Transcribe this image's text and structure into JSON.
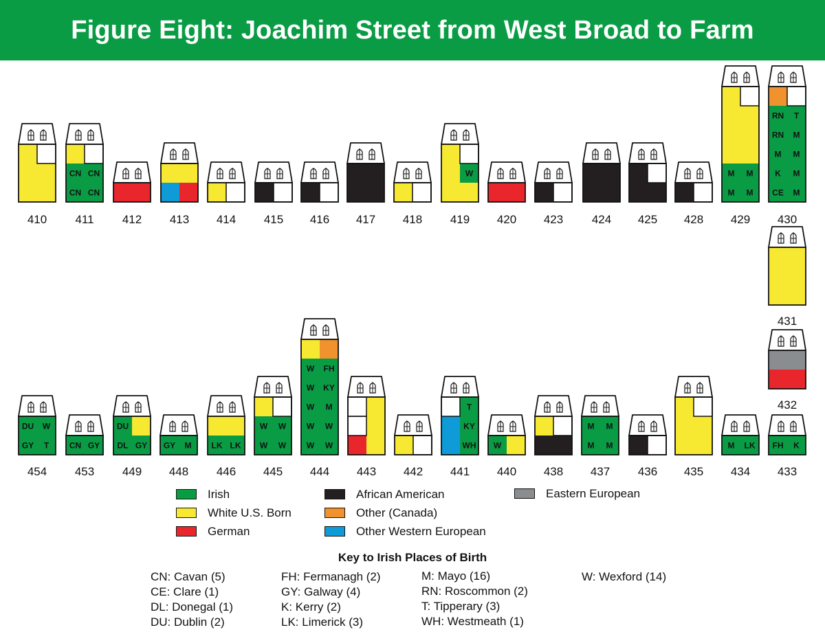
{
  "title": "Figure Eight: Joachim Street from West Broad to Farm",
  "colors": {
    "I": "#0a9c45",
    "W": "#f7e832",
    "G": "#e8262b",
    "A": "#231f20",
    "C": "#f0922e",
    "O": "#0f9bd7",
    "E": "#8a8d90",
    "X": "#ffffff"
  },
  "legend": [
    {
      "code": "I",
      "label": "Irish"
    },
    {
      "code": "W",
      "label": "White U.S. Born"
    },
    {
      "code": "G",
      "label": "German"
    },
    {
      "code": "A",
      "label": "African American"
    },
    {
      "code": "C",
      "label": "Other (Canada)"
    },
    {
      "code": "O",
      "label": "Other Western European"
    },
    {
      "code": "E",
      "label": "Eastern European"
    }
  ],
  "houses": [
    {
      "number": "410",
      "grid": [
        [
          "W",
          "X"
        ],
        [
          "W",
          "W"
        ],
        [
          "W",
          "W"
        ]
      ]
    },
    {
      "number": "411",
      "grid": [
        [
          "W",
          "X"
        ],
        [
          "I:CN",
          "I:CN"
        ],
        [
          "I:CN",
          "I:CN"
        ]
      ]
    },
    {
      "number": "412",
      "grid": [
        [
          "G",
          "G"
        ]
      ]
    },
    {
      "number": "413",
      "grid": [
        [
          "W",
          "W"
        ],
        [
          "O",
          "G"
        ]
      ]
    },
    {
      "number": "414",
      "grid": [
        [
          "W",
          "X"
        ]
      ]
    },
    {
      "number": "415",
      "grid": [
        [
          "A",
          "X"
        ]
      ]
    },
    {
      "number": "416",
      "grid": [
        [
          "A",
          "X"
        ]
      ]
    },
    {
      "number": "417",
      "grid": [
        [
          "A",
          "A"
        ],
        [
          "A",
          "A"
        ]
      ]
    },
    {
      "number": "418",
      "grid": [
        [
          "W",
          "X"
        ]
      ]
    },
    {
      "number": "419",
      "grid": [
        [
          "W",
          "X"
        ],
        [
          "W",
          "I:W"
        ],
        [
          "W",
          "W"
        ]
      ]
    },
    {
      "number": "420",
      "grid": [
        [
          "G",
          "G"
        ]
      ]
    },
    {
      "number": "423",
      "grid": [
        [
          "A",
          "X"
        ]
      ]
    },
    {
      "number": "424",
      "grid": [
        [
          "A",
          "A"
        ],
        [
          "A",
          "A"
        ]
      ]
    },
    {
      "number": "425",
      "grid": [
        [
          "A",
          "X"
        ],
        [
          "A",
          "A"
        ]
      ]
    },
    {
      "number": "428",
      "grid": [
        [
          "A",
          "X"
        ]
      ]
    },
    {
      "number": "429",
      "grid": [
        [
          "W",
          "X"
        ],
        [
          "W",
          "W"
        ],
        [
          "W",
          "W"
        ],
        [
          "W",
          "W"
        ],
        [
          "I:M",
          "I:M"
        ],
        [
          "I:M",
          "I:M"
        ]
      ]
    },
    {
      "number": "430",
      "grid": [
        [
          "C",
          "X"
        ],
        [
          "I:RN",
          "I:T"
        ],
        [
          "I:RN",
          "I:M"
        ],
        [
          "I:M",
          "I:M"
        ],
        [
          "I:K",
          "I:M"
        ],
        [
          "I:CE",
          "I:M"
        ]
      ]
    },
    {
      "number": "431",
      "grid": [
        [
          "W",
          "W"
        ],
        [
          "W",
          "W"
        ],
        [
          "W",
          "W"
        ]
      ]
    },
    {
      "number": "432",
      "grid": [
        [
          "E",
          "E"
        ],
        [
          "G",
          "G"
        ]
      ]
    },
    {
      "number": "454",
      "grid": [
        [
          "I:DU",
          "I:W"
        ],
        [
          "I:GY",
          "I:T"
        ]
      ]
    },
    {
      "number": "453",
      "grid": [
        [
          "I:CN",
          "I:GY"
        ]
      ]
    },
    {
      "number": "449",
      "grid": [
        [
          "I:DU",
          "W"
        ],
        [
          "I:DL",
          "I:GY"
        ]
      ]
    },
    {
      "number": "448",
      "grid": [
        [
          "I:GY",
          "I:M"
        ]
      ]
    },
    {
      "number": "446",
      "grid": [
        [
          "W",
          "W"
        ],
        [
          "I:LK",
          "I:LK"
        ]
      ]
    },
    {
      "number": "445",
      "grid": [
        [
          "W",
          "X"
        ],
        [
          "I:W",
          "I:W"
        ],
        [
          "I:W",
          "I:W"
        ]
      ]
    },
    {
      "number": "444",
      "grid": [
        [
          "W",
          "C"
        ],
        [
          "I:W",
          "I:FH"
        ],
        [
          "I:W",
          "I:KY"
        ],
        [
          "I:W",
          "I:M"
        ],
        [
          "I:W",
          "I:W"
        ],
        [
          "I:W",
          "I:W"
        ]
      ]
    },
    {
      "number": "443",
      "grid": [
        [
          "X",
          "W"
        ],
        [
          "X",
          "W"
        ],
        [
          "G",
          "W"
        ]
      ]
    },
    {
      "number": "442",
      "grid": [
        [
          "W",
          "X"
        ]
      ]
    },
    {
      "number": "441",
      "grid": [
        [
          "X",
          "I:T"
        ],
        [
          "O",
          "I:KY"
        ],
        [
          "O",
          "I:WH"
        ]
      ]
    },
    {
      "number": "440",
      "grid": [
        [
          "I:W",
          "W"
        ]
      ]
    },
    {
      "number": "438",
      "grid": [
        [
          "W",
          "X"
        ],
        [
          "A",
          "A"
        ]
      ]
    },
    {
      "number": "437",
      "grid": [
        [
          "I:M",
          "I:M"
        ],
        [
          "I:M",
          "I:M"
        ]
      ]
    },
    {
      "number": "436",
      "grid": [
        [
          "A",
          "X"
        ]
      ]
    },
    {
      "number": "435",
      "grid": [
        [
          "W",
          "X"
        ],
        [
          "W",
          "W"
        ],
        [
          "W",
          "W"
        ]
      ]
    },
    {
      "number": "434",
      "grid": [
        [
          "I:M",
          "I:LK"
        ]
      ]
    },
    {
      "number": "433",
      "grid": [
        [
          "I:FH",
          "I:K"
        ]
      ]
    }
  ],
  "key_title": "Key to Irish Places of Birth",
  "key_columns": [
    [
      "CN: Cavan (5)",
      "CE: Clare (1)",
      "DL: Donegal (1)",
      "DU: Dublin (2)"
    ],
    [
      "FH: Fermanagh (2)",
      "GY: Galway (4)",
      "K: Kerry (2)",
      "LK: Limerick (3)"
    ],
    [
      "M: Mayo (16)",
      "RN: Roscommon (2)",
      "T: Tipperary (3)",
      "WH: Westmeath (1)"
    ],
    [
      "W: Wexford (14)"
    ]
  ]
}
